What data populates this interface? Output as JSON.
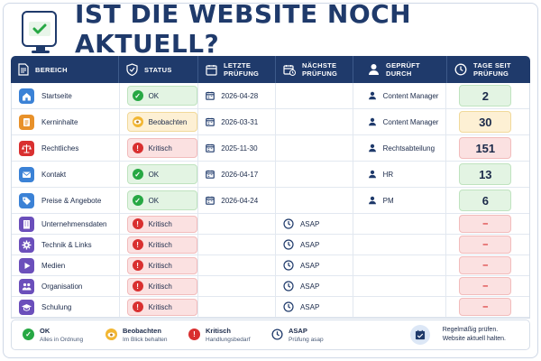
{
  "title": "IST DIE WEBSITE NOCH AKTUELL?",
  "colors": {
    "navy": "#1f3a6b",
    "ok": "#27a844",
    "warn": "#f2b632",
    "crit": "#d93030"
  },
  "headers": {
    "area": "BEREICH",
    "status": "STATUS",
    "last_check_1": "LETZTE",
    "last_check_2": "PRÜFUNG",
    "next_check_1": "NÄCHSTE",
    "next_check_2": "PRÜFUNG",
    "checked_by_1": "GEPRÜFT",
    "checked_by_2": "DURCH",
    "days_1": "TAGE SEIT",
    "days_2": "PRÜFUNG"
  },
  "rows": [
    {
      "area": "Startseite",
      "icon": "home-icon",
      "icon_color": "#3b82d6",
      "status": "OK",
      "last": "2026-04-28",
      "next": "",
      "by": "Content Manager",
      "days": "2"
    },
    {
      "area": "Kerninhalte",
      "icon": "document-icon",
      "icon_color": "#e8912a",
      "status": "Beobachten",
      "last": "2026-03-31",
      "next": "",
      "by": "Content Manager",
      "days": "30"
    },
    {
      "area": "Rechtliches",
      "icon": "scale-icon",
      "icon_color": "#d93030",
      "status": "Kritisch",
      "last": "2025-11-30",
      "next": "",
      "by": "Rechtsabteilung",
      "days": "151"
    },
    {
      "area": "Kontakt",
      "icon": "mail-icon",
      "icon_color": "#3b82d6",
      "status": "OK",
      "last": "2026-04-17",
      "next": "",
      "by": "HR",
      "days": "13"
    },
    {
      "area": "Preise & Angebote",
      "icon": "tag-icon",
      "icon_color": "#3b82d6",
      "status": "OK",
      "last": "2026-04-24",
      "next": "",
      "by": "PM",
      "days": "6"
    },
    {
      "area": "Unternehmensdaten",
      "icon": "building-icon",
      "icon_color": "#6b4fbb",
      "status": "Kritisch",
      "last": "",
      "next": "ASAP",
      "by": "",
      "days": "–"
    },
    {
      "area": "Technik & Links",
      "icon": "gear-icon",
      "icon_color": "#6b4fbb",
      "status": "Kritisch",
      "last": "",
      "next": "ASAP",
      "by": "",
      "days": "–"
    },
    {
      "area": "Medien",
      "icon": "play-icon",
      "icon_color": "#6b4fbb",
      "status": "Kritisch",
      "last": "",
      "next": "ASAP",
      "by": "",
      "days": "–"
    },
    {
      "area": "Organisation",
      "icon": "people-icon",
      "icon_color": "#6b4fbb",
      "status": "Kritisch",
      "last": "",
      "next": "ASAP",
      "by": "",
      "days": "–"
    },
    {
      "area": "Schulung",
      "icon": "graduation-icon",
      "icon_color": "#6b4fbb",
      "status": "Kritisch",
      "last": "",
      "next": "ASAP",
      "by": "",
      "days": "–"
    }
  ],
  "legend": {
    "ok_title": "OK",
    "ok_sub": "Alles in Ordnung",
    "warn_title": "Beobachten",
    "warn_sub": "Im Blick behalten",
    "crit_title": "Kritisch",
    "crit_sub": "Handlungsbedarf",
    "asap_title": "ASAP",
    "asap_sub": "Prüfung asap",
    "tip_1": "Regelmäßig prüfen.",
    "tip_2": "Website aktuell halten."
  }
}
